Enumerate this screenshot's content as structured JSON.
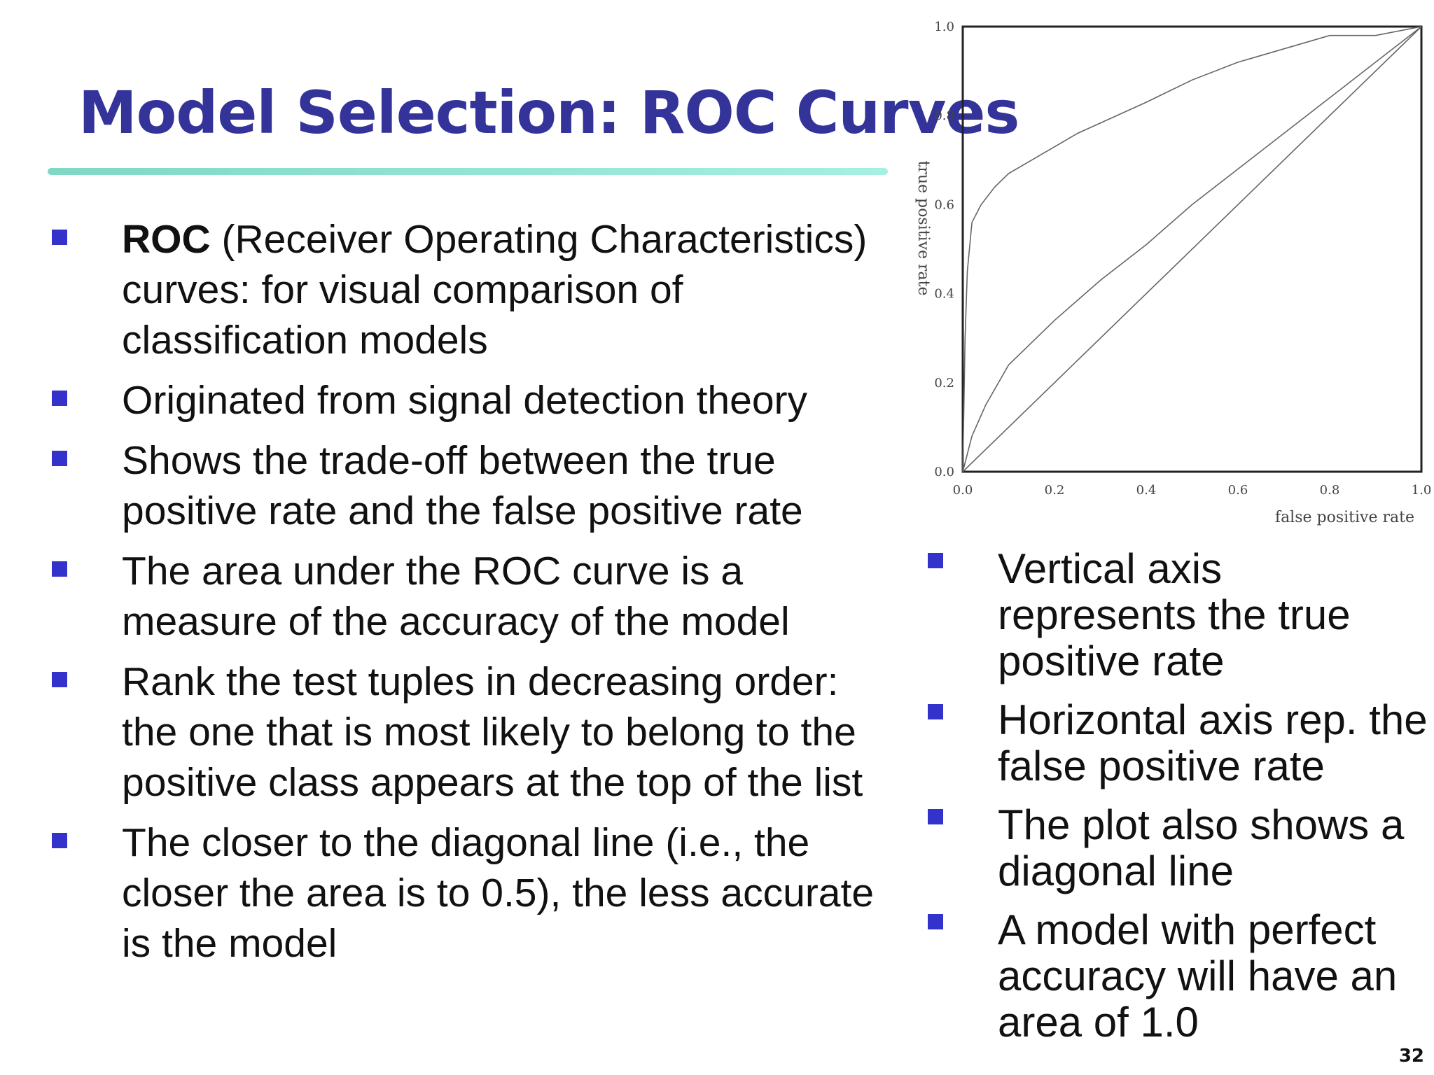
{
  "slide": {
    "title": "Model Selection: ROC Curves",
    "page_number": "32",
    "accent_color": "#33339a",
    "bullet_color": "#3333cc",
    "rule_color": "#a6efe3"
  },
  "left_bullets": [
    {
      "bold": "ROC",
      "text": " (Receiver Operating Characteristics) curves: for visual comparison of classification models"
    },
    {
      "bold": "",
      "text": "Originated from signal detection theory"
    },
    {
      "bold": "",
      "text": "Shows the trade-off between the true positive rate and the false positive rate"
    },
    {
      "bold": "",
      "text": "The area under the ROC curve is a measure of the accuracy of the model"
    },
    {
      "bold": "",
      "text": "Rank the test tuples in decreasing order: the one that is most likely to belong to the positive class appears at the top of the list"
    },
    {
      "bold": "",
      "text": "The closer to the diagonal line (i.e., the closer the area is to 0.5), the less accurate is the model"
    }
  ],
  "right_bullets": [
    "Vertical axis represents the true positive rate",
    "Horizontal axis rep. the false positive rate",
    "The plot also shows a diagonal line",
    "A model with perfect accuracy will have an area of 1.0"
  ],
  "chart_data": {
    "type": "line",
    "title": "",
    "xlabel": "false positive rate",
    "ylabel": "true positive rate",
    "xlim": [
      0,
      1
    ],
    "ylim": [
      0,
      1
    ],
    "x_ticks": [
      "0.0",
      "0.2",
      "0.4",
      "0.6",
      "0.8",
      "1.0"
    ],
    "y_ticks": [
      "0.0",
      "0.2",
      "0.4",
      "0.6",
      "0.8",
      "1.0"
    ],
    "grid": false,
    "legend": "none",
    "series": [
      {
        "x": [
          0,
          0.005,
          0.01,
          0.02,
          0.04,
          0.07,
          0.1,
          0.15,
          0.25,
          0.4,
          0.5,
          0.6,
          0.7,
          0.8,
          0.9,
          1.0
        ],
        "y": [
          0,
          0.3,
          0.45,
          0.56,
          0.6,
          0.64,
          0.67,
          0.7,
          0.76,
          0.83,
          0.88,
          0.92,
          0.95,
          0.98,
          0.98,
          1.0
        ]
      },
      {
        "x": [
          0,
          0.02,
          0.05,
          0.1,
          0.15,
          0.2,
          0.3,
          0.4,
          0.5,
          0.6,
          0.7,
          0.8,
          0.9,
          1.0
        ],
        "y": [
          0,
          0.08,
          0.15,
          0.24,
          0.29,
          0.34,
          0.43,
          0.51,
          0.6,
          0.68,
          0.76,
          0.84,
          0.92,
          1.0
        ]
      },
      {
        "x": [
          0,
          1
        ],
        "y": [
          0,
          1
        ]
      }
    ]
  }
}
